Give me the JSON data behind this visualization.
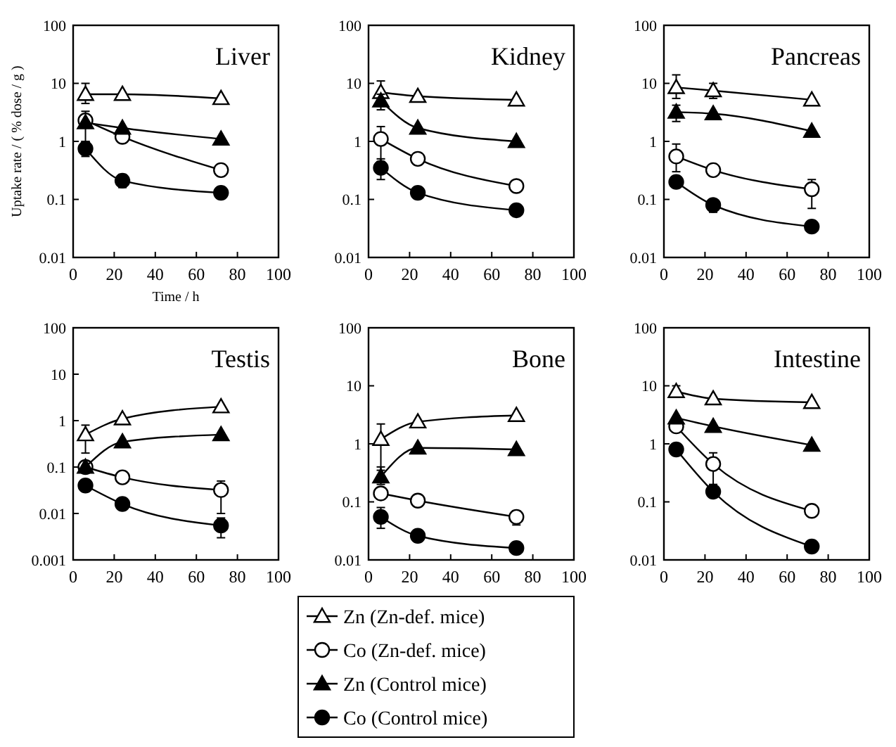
{
  "chart_data": [
    {
      "type": "line",
      "title": "Liver",
      "xlabel": "Time / h",
      "ylabel": "Uptake rate / ( % dose / g )",
      "x": [
        6,
        24,
        72
      ],
      "xlim": [
        0,
        100
      ],
      "xticks": [
        0,
        20,
        40,
        60,
        80,
        100
      ],
      "ylim": [
        0.01,
        100
      ],
      "yticks": [
        0.01,
        0.1,
        1,
        10,
        100
      ],
      "log": "y",
      "series": [
        {
          "color": "#000000",
          "marker": "triangle",
          "values": [
            6.5,
            6.5,
            5.5
          ],
          "errors": [
            [
              4.5,
              10
            ],
            null,
            null
          ]
        },
        {
          "color": "#000000",
          "marker": "circle",
          "values": [
            2.3,
            1.2,
            0.32
          ],
          "errors": [
            [
              1.0,
              3.3
            ],
            null,
            null
          ]
        },
        {
          "color": "#000000",
          "marker": "triangle",
          "values": [
            2.1,
            1.7,
            1.1
          ]
        },
        {
          "color": "#000000",
          "marker": "circle",
          "values": [
            0.75,
            0.21,
            0.13
          ],
          "errors": [
            [
              0.55,
              1.0
            ],
            [
              0.16,
              0.27
            ],
            null
          ]
        }
      ]
    },
    {
      "type": "line",
      "title": "Kidney",
      "x": [
        6,
        24,
        72
      ],
      "xlim": [
        0,
        100
      ],
      "xticks": [
        0,
        20,
        40,
        60,
        80,
        100
      ],
      "ylim": [
        0.01,
        100
      ],
      "yticks": [
        0.01,
        0.1,
        1,
        10,
        100
      ],
      "log": "y",
      "series": [
        {
          "color": "#000000",
          "marker": "triangle",
          "values": [
            7,
            6,
            5.2
          ],
          "errors": [
            [
              5,
              11
            ],
            null,
            null
          ]
        },
        {
          "color": "#000000",
          "marker": "circle",
          "values": [
            1.1,
            0.5,
            0.17
          ],
          "errors": [
            [
              0.45,
              1.8
            ],
            null,
            null
          ]
        },
        {
          "color": "#000000",
          "marker": "triangle",
          "values": [
            5,
            1.7,
            1.0
          ],
          "errors": [
            [
              3.5,
              6.5
            ],
            null,
            null
          ]
        },
        {
          "color": "#000000",
          "marker": "circle",
          "values": [
            0.35,
            0.13,
            0.065
          ],
          "errors": [
            [
              0.22,
              0.5
            ],
            null,
            null
          ]
        }
      ]
    },
    {
      "type": "line",
      "title": "Pancreas",
      "x": [
        6,
        24,
        72
      ],
      "xlim": [
        0,
        100
      ],
      "xticks": [
        0,
        20,
        40,
        60,
        80,
        100
      ],
      "ylim": [
        0.01,
        100
      ],
      "yticks": [
        0.01,
        0.1,
        1,
        10,
        100
      ],
      "log": "y",
      "series": [
        {
          "color": "#000000",
          "marker": "triangle",
          "values": [
            8.5,
            7.5,
            5.2
          ],
          "errors": [
            [
              5.5,
              14
            ],
            [
              5.5,
              10
            ],
            null
          ]
        },
        {
          "color": "#000000",
          "marker": "circle",
          "values": [
            0.55,
            0.32,
            0.15
          ],
          "errors": [
            [
              0.3,
              0.9
            ],
            null,
            [
              0.07,
              0.22
            ]
          ]
        },
        {
          "color": "#000000",
          "marker": "triangle",
          "values": [
            3.2,
            3.0,
            1.5
          ],
          "errors": [
            [
              2.2,
              4.2
            ],
            null,
            null
          ]
        },
        {
          "color": "#000000",
          "marker": "circle",
          "values": [
            0.2,
            0.08,
            0.034
          ],
          "errors": [
            null,
            [
              0.06,
              0.1
            ],
            null
          ]
        }
      ]
    },
    {
      "type": "line",
      "title": "Testis",
      "x": [
        6,
        24,
        72
      ],
      "xlim": [
        0,
        100
      ],
      "xticks": [
        0,
        20,
        40,
        60,
        80,
        100
      ],
      "ylim": [
        0.001,
        100
      ],
      "yticks": [
        0.001,
        0.01,
        0.1,
        1,
        10,
        100
      ],
      "log": "y",
      "series": [
        {
          "color": "#000000",
          "marker": "triangle",
          "values": [
            0.5,
            1.1,
            2.0
          ],
          "errors": [
            [
              0.2,
              0.8
            ],
            null,
            null
          ]
        },
        {
          "color": "#000000",
          "marker": "circle",
          "values": [
            0.1,
            0.06,
            0.032
          ],
          "errors": [
            null,
            [
              0.045,
              0.07
            ],
            [
              0.01,
              0.05
            ]
          ]
        },
        {
          "color": "#000000",
          "marker": "triangle",
          "values": [
            0.1,
            0.35,
            0.5
          ]
        },
        {
          "color": "#000000",
          "marker": "circle",
          "values": [
            0.04,
            0.016,
            0.0055
          ],
          "errors": [
            null,
            null,
            [
              0.003,
              0.008
            ]
          ]
        }
      ]
    },
    {
      "type": "line",
      "title": "Bone",
      "x": [
        6,
        24,
        72
      ],
      "xlim": [
        0,
        100
      ],
      "xticks": [
        0,
        20,
        40,
        60,
        80,
        100
      ],
      "ylim": [
        0.01,
        100
      ],
      "yticks": [
        0.01,
        0.1,
        1,
        10,
        100
      ],
      "log": "y",
      "legend": "bottom",
      "series": [
        {
          "name": "Zn (Zn-def. mice)",
          "color": "#000000",
          "marker": "triangle",
          "values": [
            1.2,
            2.4,
            3.1
          ],
          "errors": [
            [
              0.35,
              2.2
            ],
            null,
            null
          ]
        },
        {
          "name": "Co (Zn-def. mice)",
          "color": "#000000",
          "marker": "circle",
          "values": [
            0.14,
            0.105,
            0.055
          ],
          "errors": [
            null,
            null,
            [
              0.04,
              0.07
            ]
          ]
        },
        {
          "name": "Zn (Control mice)",
          "color": "#000000",
          "marker": "triangle",
          "values": [
            0.27,
            0.85,
            0.8
          ],
          "errors": [
            [
              0.2,
              0.4
            ],
            null,
            null
          ]
        },
        {
          "name": "Co (Control mice)",
          "color": "#000000",
          "marker": "circle",
          "values": [
            0.055,
            0.026,
            0.016
          ],
          "errors": [
            [
              0.035,
              0.08
            ],
            null,
            null
          ]
        }
      ]
    },
    {
      "type": "line",
      "title": "Intestine",
      "x": [
        6,
        24,
        72
      ],
      "xlim": [
        0,
        100
      ],
      "xticks": [
        0,
        20,
        40,
        60,
        80,
        100
      ],
      "ylim": [
        0.01,
        100
      ],
      "yticks": [
        0.01,
        0.1,
        1,
        10,
        100
      ],
      "log": "y",
      "series": [
        {
          "color": "#000000",
          "marker": "triangle",
          "values": [
            8,
            6,
            5.2
          ],
          "errors": [
            [
              6.5,
              10
            ],
            null,
            null
          ]
        },
        {
          "color": "#000000",
          "marker": "circle",
          "values": [
            2.0,
            0.45,
            0.07
          ],
          "errors": [
            null,
            [
              0.2,
              0.7
            ],
            null
          ]
        },
        {
          "color": "#000000",
          "marker": "triangle",
          "values": [
            2.8,
            2.0,
            0.95
          ]
        },
        {
          "color": "#000000",
          "marker": "circle",
          "values": [
            0.8,
            0.15,
            0.017
          ]
        }
      ]
    }
  ]
}
